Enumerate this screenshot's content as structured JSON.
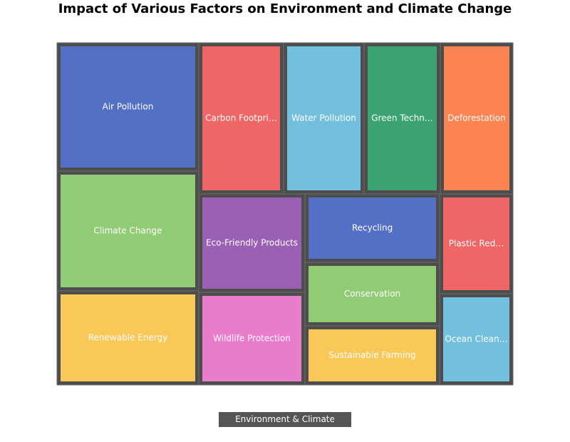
{
  "chart_data": {
    "type": "treemap",
    "title": "Impact of Various Factors on Environment and Climate Change",
    "root": "Environment & Climate Change",
    "items": [
      {
        "name": "Air Pollution",
        "label": "Air Pollution",
        "color": "#5470c6"
      },
      {
        "name": "Climate Change",
        "label": "Climate Change",
        "color": "#91cc75"
      },
      {
        "name": "Renewable Energy",
        "label": "Renewable Energy",
        "color": "#fac858"
      },
      {
        "name": "Carbon Footprint",
        "label": "Carbon Footpri…",
        "color": "#ee6666"
      },
      {
        "name": "Water Pollution",
        "label": "Water Pollution",
        "color": "#73c0de"
      },
      {
        "name": "Green Technology",
        "label": "Green Techn…",
        "color": "#3ba272"
      },
      {
        "name": "Deforestation",
        "label": "Deforestation",
        "color": "#fc8452"
      },
      {
        "name": "Eco-Friendly Products",
        "label": "Eco-Friendly Products",
        "color": "#9a60b4"
      },
      {
        "name": "Wildlife Protection",
        "label": "Wildlife Protection",
        "color": "#ea7ccc"
      },
      {
        "name": "Recycling",
        "label": "Recycling",
        "color": "#5470c6"
      },
      {
        "name": "Conservation",
        "label": "Conservation",
        "color": "#91cc75"
      },
      {
        "name": "Sustainable Farming",
        "label": "Sustainable Farming",
        "color": "#fac858"
      },
      {
        "name": "Plastic Reduction",
        "label": "Plastic Red…",
        "color": "#ee6666"
      },
      {
        "name": "Ocean Cleanup",
        "label": "Ocean Clean…",
        "color": "#73c0de"
      }
    ]
  }
}
